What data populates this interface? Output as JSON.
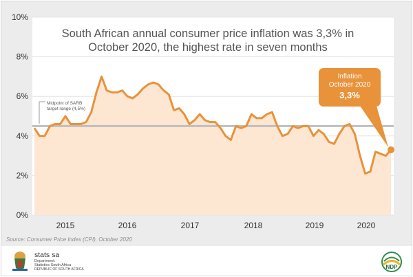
{
  "chart_data": {
    "type": "line",
    "title": "South African annual consumer price inflation was 3,3% in October 2020, the highest rate in seven months",
    "title_lines": [
      "South African annual consumer price inflation was 3,3% in",
      "October 2020, the highest rate in seven months"
    ],
    "y_ticks": [
      "10%",
      "8%",
      "6%",
      "4%",
      "2%",
      "0%"
    ],
    "x_ticks": [
      "2015",
      "2016",
      "2017",
      "2018",
      "2019",
      "2020"
    ],
    "ylim": [
      0,
      10
    ],
    "y_unit": "%",
    "series": [
      {
        "values": [
          4.4,
          4.0,
          4.0,
          4.5,
          4.6,
          4.6,
          5.0,
          4.6,
          4.6,
          4.6,
          4.7,
          5.2,
          6.2,
          7.0,
          6.3,
          6.2,
          6.2,
          6.3,
          6.0,
          5.9,
          6.1,
          6.4,
          6.6,
          6.7,
          6.6,
          6.3,
          6.1,
          5.3,
          5.4,
          5.1,
          4.6,
          4.8,
          5.1,
          4.8,
          4.7,
          4.7,
          4.4,
          4.0,
          3.8,
          4.5,
          4.4,
          4.5,
          5.1,
          4.9,
          4.9,
          5.1,
          5.2,
          4.5,
          4.0,
          4.1,
          4.5,
          4.4,
          4.5,
          4.5,
          4.0,
          4.3,
          4.1,
          3.7,
          3.6,
          4.1,
          4.5,
          4.6,
          4.1,
          3.0,
          2.1,
          2.2,
          3.2,
          3.1,
          3.0,
          3.3
        ]
      }
    ],
    "reference_line": {
      "value": 4.5,
      "label_lines": [
        "Midpoint of SARB",
        "target range (4,5%)"
      ]
    },
    "callout": {
      "line1": "Inflation",
      "line2": "October 2020",
      "value": "3,3%"
    },
    "source": "Source: Consumer Price Index (CPI), October 2020",
    "colors": {
      "line": "#e8923a",
      "area": "#fde6d2",
      "reference": "#bfbfbf",
      "callout": "#e8923a"
    }
  },
  "footer": {
    "org_name": "stats sa",
    "dept_lines": [
      "Department:",
      "Statistics South Africa"
    ],
    "country": "REPUBLIC OF SOUTH AFRICA",
    "ndp_text": "NDP"
  }
}
